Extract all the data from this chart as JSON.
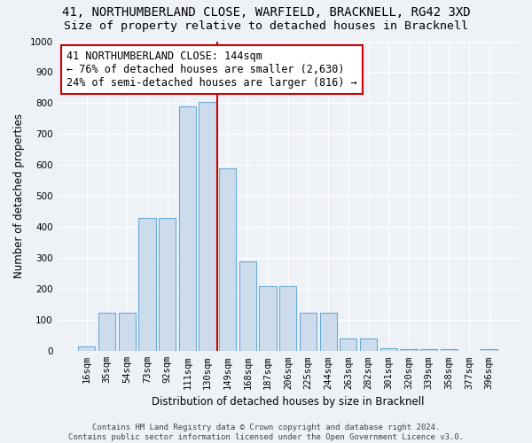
{
  "title_line1": "41, NORTHUMBERLAND CLOSE, WARFIELD, BRACKNELL, RG42 3XD",
  "title_line2": "Size of property relative to detached houses in Bracknell",
  "xlabel": "Distribution of detached houses by size in Bracknell",
  "ylabel": "Number of detached properties",
  "bin_labels": [
    "16sqm",
    "35sqm",
    "54sqm",
    "73sqm",
    "92sqm",
    "111sqm",
    "130sqm",
    "149sqm",
    "168sqm",
    "187sqm",
    "206sqm",
    "225sqm",
    "244sqm",
    "263sqm",
    "282sqm",
    "301sqm",
    "320sqm",
    "339sqm",
    "358sqm",
    "377sqm",
    "396sqm"
  ],
  "bar_values": [
    15,
    125,
    125,
    430,
    430,
    790,
    805,
    590,
    290,
    210,
    210,
    125,
    125,
    40,
    40,
    10,
    8,
    8,
    8,
    0,
    8
  ],
  "bar_color": "#ccdcec",
  "bar_edge_color": "#6aaad4",
  "vline_bin_index": 7,
  "vline_color": "#cc0000",
  "annotation_text": "41 NORTHUMBERLAND CLOSE: 144sqm\n← 76% of detached houses are smaller (2,630)\n24% of semi-detached houses are larger (816) →",
  "annotation_box_color": "#ffffff",
  "annotation_box_edge": "#cc0000",
  "ylim": [
    0,
    1000
  ],
  "yticks": [
    0,
    100,
    200,
    300,
    400,
    500,
    600,
    700,
    800,
    900,
    1000
  ],
  "footer": "Contains HM Land Registry data © Crown copyright and database right 2024.\nContains public sector information licensed under the Open Government Licence v3.0.",
  "background_color": "#eef2f7",
  "grid_color": "#ffffff",
  "title_fontsize": 10,
  "subtitle_fontsize": 9.5,
  "axis_label_fontsize": 8.5,
  "tick_fontsize": 7.5,
  "annotation_fontsize": 8.5,
  "footer_fontsize": 6.5
}
